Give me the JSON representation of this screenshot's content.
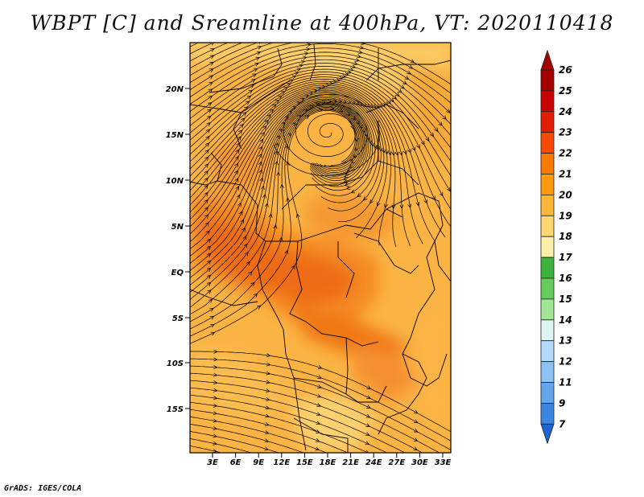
{
  "title": "WBPT [C] and Sreamline at 400hPa, VT: 2020110418",
  "credit": "GrADS: IGES/COLA",
  "map": {
    "lat_ticks": [
      "20N",
      "15N",
      "10N",
      "5N",
      "EQ",
      "5S",
      "10S",
      "15S"
    ],
    "lon_ticks": [
      "3E",
      "6E",
      "9E",
      "12E",
      "15E",
      "18E",
      "21E",
      "24E",
      "27E",
      "30E",
      "33E"
    ]
  },
  "colorbar": {
    "labels": [
      "26",
      "25",
      "24",
      "23",
      "22",
      "21",
      "20",
      "19",
      "18",
      "17",
      "16",
      "15",
      "14",
      "13",
      "12",
      "11",
      "9",
      "7"
    ],
    "colors": [
      "#a50000",
      "#c80000",
      "#e11e00",
      "#f54a00",
      "#fa7a00",
      "#fc9a10",
      "#fdb53a",
      "#fdd670",
      "#fef0a8",
      "#3cb43c",
      "#64cc5a",
      "#a0e696",
      "#ddf5f0",
      "#b4dcfa",
      "#8cc3f5",
      "#64a5eb",
      "#3c87e1",
      "#1e64d2"
    ]
  },
  "palette": {
    "cyclone_color": "#fdc050",
    "base_color": "#fbb040",
    "core_color": "#f07018",
    "hot_color": "#e85a10"
  }
}
